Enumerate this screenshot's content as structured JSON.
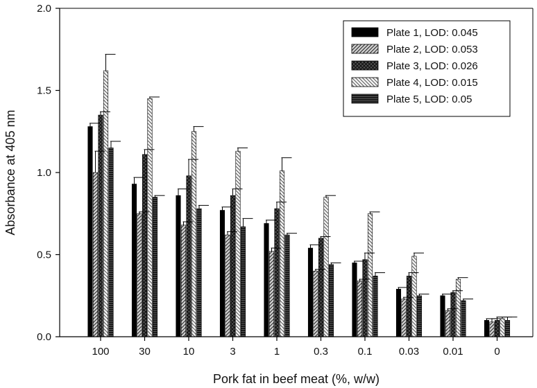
{
  "chart_data": {
    "type": "bar",
    "xlabel": "Pork fat in beef meat (%, w/w)",
    "ylabel": "Absorbance at 405 nm",
    "ylim": [
      0,
      2.0
    ],
    "yticks": [
      "0.0",
      "0.5",
      "1.0",
      "1.5",
      "2.0"
    ],
    "ytick_values": [
      0,
      0.5,
      1.0,
      1.5,
      2.0
    ],
    "categories": [
      "100",
      "30",
      "10",
      "3",
      "1",
      "0.3",
      "0.1",
      "0.03",
      "0.01",
      "0"
    ],
    "legend_position": "top-right",
    "series": [
      {
        "name": "Plate 1, LOD: 0.045",
        "values": [
          1.28,
          0.93,
          0.86,
          0.77,
          0.69,
          0.54,
          0.45,
          0.29,
          0.25,
          0.1
        ],
        "errors": [
          0.02,
          0.04,
          0.04,
          0.02,
          0.02,
          0.02,
          0.01,
          0.01,
          0.01,
          0.01
        ],
        "color": "#000000",
        "pattern": "solid"
      },
      {
        "name": "Plate 2, LOD: 0.053",
        "values": [
          1.0,
          0.75,
          0.68,
          0.62,
          0.52,
          0.4,
          0.34,
          0.23,
          0.16,
          0.09
        ],
        "errors": [
          0.13,
          0.01,
          0.02,
          0.02,
          0.02,
          0.01,
          0.01,
          0.01,
          0.01,
          0.02
        ],
        "color": "#9a9a9a",
        "pattern": "diag-fwd"
      },
      {
        "name": "Plate 3, LOD: 0.026",
        "values": [
          1.35,
          1.11,
          0.98,
          0.86,
          0.78,
          0.6,
          0.47,
          0.37,
          0.27,
          0.1
        ],
        "errors": [
          0.02,
          0.03,
          0.1,
          0.04,
          0.04,
          0.01,
          0.04,
          0.02,
          0.01,
          0.02
        ],
        "color": "#444444",
        "pattern": "crosshatch"
      },
      {
        "name": "Plate 4, LOD: 0.015",
        "values": [
          1.62,
          1.45,
          1.25,
          1.13,
          1.01,
          0.85,
          0.75,
          0.49,
          0.35,
          0.11
        ],
        "errors": [
          0.1,
          0.01,
          0.03,
          0.02,
          0.08,
          0.01,
          0.01,
          0.02,
          0.01,
          0.01
        ],
        "color": "#c8c8c8",
        "pattern": "diag-back"
      },
      {
        "name": "Plate 5, LOD: 0.05",
        "values": [
          1.15,
          0.85,
          0.78,
          0.67,
          0.62,
          0.44,
          0.37,
          0.25,
          0.22,
          0.1
        ],
        "errors": [
          0.04,
          0.01,
          0.02,
          0.05,
          0.01,
          0.01,
          0.02,
          0.01,
          0.01,
          0.02
        ],
        "color": "#2a2a2a",
        "pattern": "horizontal"
      }
    ]
  }
}
